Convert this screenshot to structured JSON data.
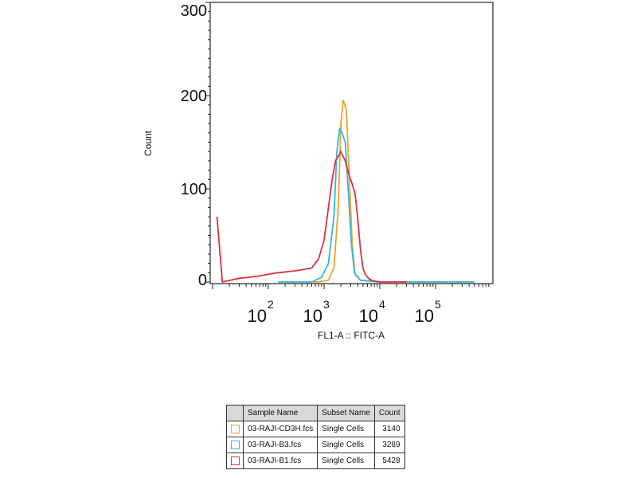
{
  "chart_data": {
    "type": "line",
    "title": "",
    "xlabel": "FL1-A :: FITC-A",
    "ylabel": "Count",
    "x_scale": "log",
    "xlim": [
      10,
      1000000
    ],
    "ylim": [
      0,
      300
    ],
    "y_ticks": [
      {
        "value": 0,
        "label": "0"
      },
      {
        "value": 100,
        "label": "100"
      },
      {
        "value": 200,
        "label": "200"
      },
      {
        "value": 300,
        "label": "300"
      }
    ],
    "x_ticks": [
      {
        "value": 100,
        "base": "10",
        "exp": "2"
      },
      {
        "value": 1000,
        "base": "10",
        "exp": "3"
      },
      {
        "value": 10000,
        "base": "10",
        "exp": "4"
      },
      {
        "value": 100000,
        "base": "10",
        "exp": "5"
      }
    ],
    "grid": false,
    "legend_position": "bottom-table",
    "series": [
      {
        "name": "03-RAJI-CD3H.fcs",
        "color": "#f0a030",
        "x": [
          150,
          800,
          1200,
          1500,
          1800,
          2000,
          2200,
          2500,
          2800,
          3200,
          3600,
          4500,
          10000,
          50000,
          500000
        ],
        "y": [
          0,
          0,
          2,
          15,
          80,
          170,
          195,
          185,
          120,
          40,
          8,
          2,
          0,
          0,
          0
        ]
      },
      {
        "name": "03-RAJI-B3.fcs",
        "color": "#30b8d8",
        "x": [
          150,
          600,
          900,
          1200,
          1500,
          1700,
          1900,
          2100,
          2400,
          2700,
          3100,
          3500,
          4500,
          10000,
          500000
        ],
        "y": [
          0,
          0,
          5,
          20,
          70,
          140,
          165,
          160,
          150,
          100,
          40,
          10,
          2,
          0,
          0
        ]
      },
      {
        "name": "03-RAJI-B1.fcs",
        "color": "#e03040",
        "x": [
          12,
          15,
          30,
          60,
          150,
          300,
          600,
          800,
          1000,
          1200,
          1400,
          1600,
          1800,
          2000,
          2400,
          2800,
          3200,
          3600,
          4000,
          4500,
          5000,
          5500,
          6500,
          8000,
          10000,
          30000
        ],
        "y": [
          70,
          0,
          4,
          6,
          10,
          12,
          15,
          25,
          45,
          80,
          110,
          130,
          135,
          140,
          130,
          115,
          105,
          95,
          70,
          35,
          15,
          8,
          3,
          1,
          0,
          0
        ]
      }
    ]
  },
  "legend_table": {
    "headers": [
      "",
      "Sample Name",
      "Subset Name",
      "Count"
    ],
    "rows": [
      {
        "color": "#f0a030",
        "sample": "03-RAJI-CD3H.fcs",
        "subset": "Single Cells",
        "count": "3140"
      },
      {
        "color": "#30b8d8",
        "sample": "03-RAJI-B3.fcs",
        "subset": "Single Cells",
        "count": "3289"
      },
      {
        "color": "#e03040",
        "sample": "03-RAJI-B1.fcs",
        "subset": "Single Cells",
        "count": "5428"
      }
    ]
  }
}
